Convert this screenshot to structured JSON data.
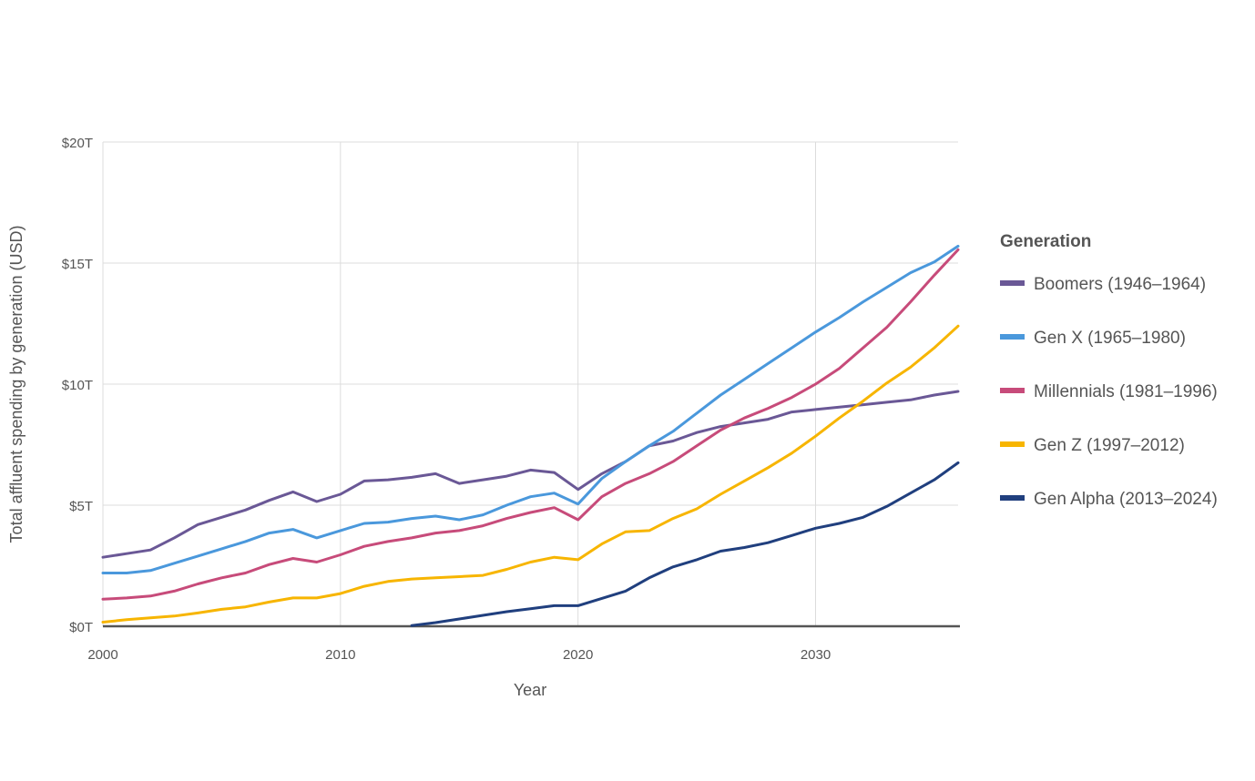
{
  "chart_data": {
    "type": "line",
    "title": "",
    "xlabel": "Year",
    "ylabel": "Total affluent spending by generation (USD)",
    "xlim": [
      2000,
      2036
    ],
    "ylim": [
      0,
      20
    ],
    "x_ticks": [
      2000,
      2010,
      2020,
      2030
    ],
    "x_tick_labels": [
      "2000",
      "2010",
      "2020",
      "2030"
    ],
    "y_ticks": [
      0,
      5,
      10,
      15,
      20
    ],
    "y_tick_labels": [
      "$0T",
      "$5T",
      "$10T",
      "$15T",
      "$20T"
    ],
    "grid": true,
    "legend": {
      "title": "Generation",
      "position": "right"
    },
    "series": [
      {
        "name": "Boomers (1946–1964)",
        "color": "#6a5896",
        "points": [
          [
            2000,
            2.85
          ],
          [
            2001,
            3.0
          ],
          [
            2002,
            3.15
          ],
          [
            2003,
            3.65
          ],
          [
            2004,
            4.2
          ],
          [
            2005,
            4.5
          ],
          [
            2006,
            4.8
          ],
          [
            2007,
            5.2
          ],
          [
            2008,
            5.55
          ],
          [
            2009,
            5.15
          ],
          [
            2010,
            5.45
          ],
          [
            2011,
            6.0
          ],
          [
            2012,
            6.05
          ],
          [
            2013,
            6.15
          ],
          [
            2014,
            6.3
          ],
          [
            2015,
            5.9
          ],
          [
            2016,
            6.05
          ],
          [
            2017,
            6.2
          ],
          [
            2018,
            6.45
          ],
          [
            2019,
            6.35
          ],
          [
            2020,
            5.65
          ],
          [
            2021,
            6.3
          ],
          [
            2022,
            6.8
          ],
          [
            2023,
            7.45
          ],
          [
            2024,
            7.65
          ],
          [
            2025,
            8.0
          ],
          [
            2026,
            8.25
          ],
          [
            2027,
            8.4
          ],
          [
            2028,
            8.55
          ],
          [
            2029,
            8.85
          ],
          [
            2030,
            8.95
          ],
          [
            2031,
            9.05
          ],
          [
            2032,
            9.15
          ],
          [
            2033,
            9.25
          ],
          [
            2034,
            9.35
          ],
          [
            2035,
            9.55
          ],
          [
            2036,
            9.7
          ]
        ]
      },
      {
        "name": "Gen X (1965–1980)",
        "color": "#4a98dc",
        "points": [
          [
            2000,
            2.2
          ],
          [
            2001,
            2.2
          ],
          [
            2002,
            2.3
          ],
          [
            2003,
            2.6
          ],
          [
            2004,
            2.9
          ],
          [
            2005,
            3.2
          ],
          [
            2006,
            3.5
          ],
          [
            2007,
            3.85
          ],
          [
            2008,
            4.0
          ],
          [
            2009,
            3.65
          ],
          [
            2010,
            3.95
          ],
          [
            2011,
            4.25
          ],
          [
            2012,
            4.3
          ],
          [
            2013,
            4.45
          ],
          [
            2014,
            4.55
          ],
          [
            2015,
            4.4
          ],
          [
            2016,
            4.6
          ],
          [
            2017,
            5.0
          ],
          [
            2018,
            5.35
          ],
          [
            2019,
            5.5
          ],
          [
            2020,
            5.05
          ],
          [
            2021,
            6.1
          ],
          [
            2022,
            6.8
          ],
          [
            2023,
            7.45
          ],
          [
            2024,
            8.05
          ],
          [
            2025,
            8.8
          ],
          [
            2026,
            9.55
          ],
          [
            2027,
            10.2
          ],
          [
            2028,
            10.85
          ],
          [
            2029,
            11.5
          ],
          [
            2030,
            12.15
          ],
          [
            2031,
            12.75
          ],
          [
            2032,
            13.4
          ],
          [
            2033,
            14.0
          ],
          [
            2034,
            14.6
          ],
          [
            2035,
            15.05
          ],
          [
            2036,
            15.7
          ]
        ]
      },
      {
        "name": "Millennials (1981–1996)",
        "color": "#c74b7a",
        "points": [
          [
            2000,
            1.12
          ],
          [
            2001,
            1.17
          ],
          [
            2002,
            1.25
          ],
          [
            2003,
            1.45
          ],
          [
            2004,
            1.75
          ],
          [
            2005,
            2.0
          ],
          [
            2006,
            2.2
          ],
          [
            2007,
            2.55
          ],
          [
            2008,
            2.8
          ],
          [
            2009,
            2.65
          ],
          [
            2010,
            2.95
          ],
          [
            2011,
            3.3
          ],
          [
            2012,
            3.5
          ],
          [
            2013,
            3.65
          ],
          [
            2014,
            3.85
          ],
          [
            2015,
            3.95
          ],
          [
            2016,
            4.15
          ],
          [
            2017,
            4.45
          ],
          [
            2018,
            4.7
          ],
          [
            2019,
            4.9
          ],
          [
            2020,
            4.4
          ],
          [
            2021,
            5.35
          ],
          [
            2022,
            5.9
          ],
          [
            2023,
            6.3
          ],
          [
            2024,
            6.8
          ],
          [
            2025,
            7.45
          ],
          [
            2026,
            8.1
          ],
          [
            2027,
            8.6
          ],
          [
            2028,
            9.0
          ],
          [
            2029,
            9.45
          ],
          [
            2030,
            10.0
          ],
          [
            2031,
            10.65
          ],
          [
            2032,
            11.5
          ],
          [
            2033,
            12.35
          ],
          [
            2034,
            13.4
          ],
          [
            2035,
            14.5
          ],
          [
            2036,
            15.55
          ]
        ]
      },
      {
        "name": "Gen Z (1997–2012)",
        "color": "#f7b500",
        "points": [
          [
            2000,
            0.17
          ],
          [
            2001,
            0.27
          ],
          [
            2002,
            0.35
          ],
          [
            2003,
            0.42
          ],
          [
            2004,
            0.55
          ],
          [
            2005,
            0.7
          ],
          [
            2006,
            0.8
          ],
          [
            2007,
            1.0
          ],
          [
            2008,
            1.17
          ],
          [
            2009,
            1.17
          ],
          [
            2010,
            1.35
          ],
          [
            2011,
            1.65
          ],
          [
            2012,
            1.85
          ],
          [
            2013,
            1.95
          ],
          [
            2014,
            2.0
          ],
          [
            2015,
            2.05
          ],
          [
            2016,
            2.1
          ],
          [
            2017,
            2.35
          ],
          [
            2018,
            2.65
          ],
          [
            2019,
            2.85
          ],
          [
            2020,
            2.75
          ],
          [
            2021,
            3.4
          ],
          [
            2022,
            3.9
          ],
          [
            2023,
            3.95
          ],
          [
            2024,
            4.45
          ],
          [
            2025,
            4.85
          ],
          [
            2026,
            5.45
          ],
          [
            2027,
            6.0
          ],
          [
            2028,
            6.55
          ],
          [
            2029,
            7.15
          ],
          [
            2030,
            7.85
          ],
          [
            2031,
            8.6
          ],
          [
            2032,
            9.3
          ],
          [
            2033,
            10.05
          ],
          [
            2034,
            10.7
          ],
          [
            2035,
            11.5
          ],
          [
            2036,
            12.4
          ]
        ]
      },
      {
        "name": "Gen Alpha (2013–2024)",
        "color": "#203f7e",
        "points": [
          [
            2013,
            0.03
          ],
          [
            2014,
            0.15
          ],
          [
            2015,
            0.3
          ],
          [
            2016,
            0.45
          ],
          [
            2017,
            0.6
          ],
          [
            2018,
            0.72
          ],
          [
            2019,
            0.85
          ],
          [
            2020,
            0.85
          ],
          [
            2021,
            1.15
          ],
          [
            2022,
            1.45
          ],
          [
            2023,
            2.0
          ],
          [
            2024,
            2.45
          ],
          [
            2025,
            2.75
          ],
          [
            2026,
            3.1
          ],
          [
            2027,
            3.25
          ],
          [
            2028,
            3.45
          ],
          [
            2029,
            3.75
          ],
          [
            2030,
            4.05
          ],
          [
            2031,
            4.25
          ],
          [
            2032,
            4.5
          ],
          [
            2033,
            4.95
          ],
          [
            2034,
            5.5
          ],
          [
            2035,
            6.05
          ],
          [
            2036,
            6.75
          ]
        ]
      }
    ]
  }
}
